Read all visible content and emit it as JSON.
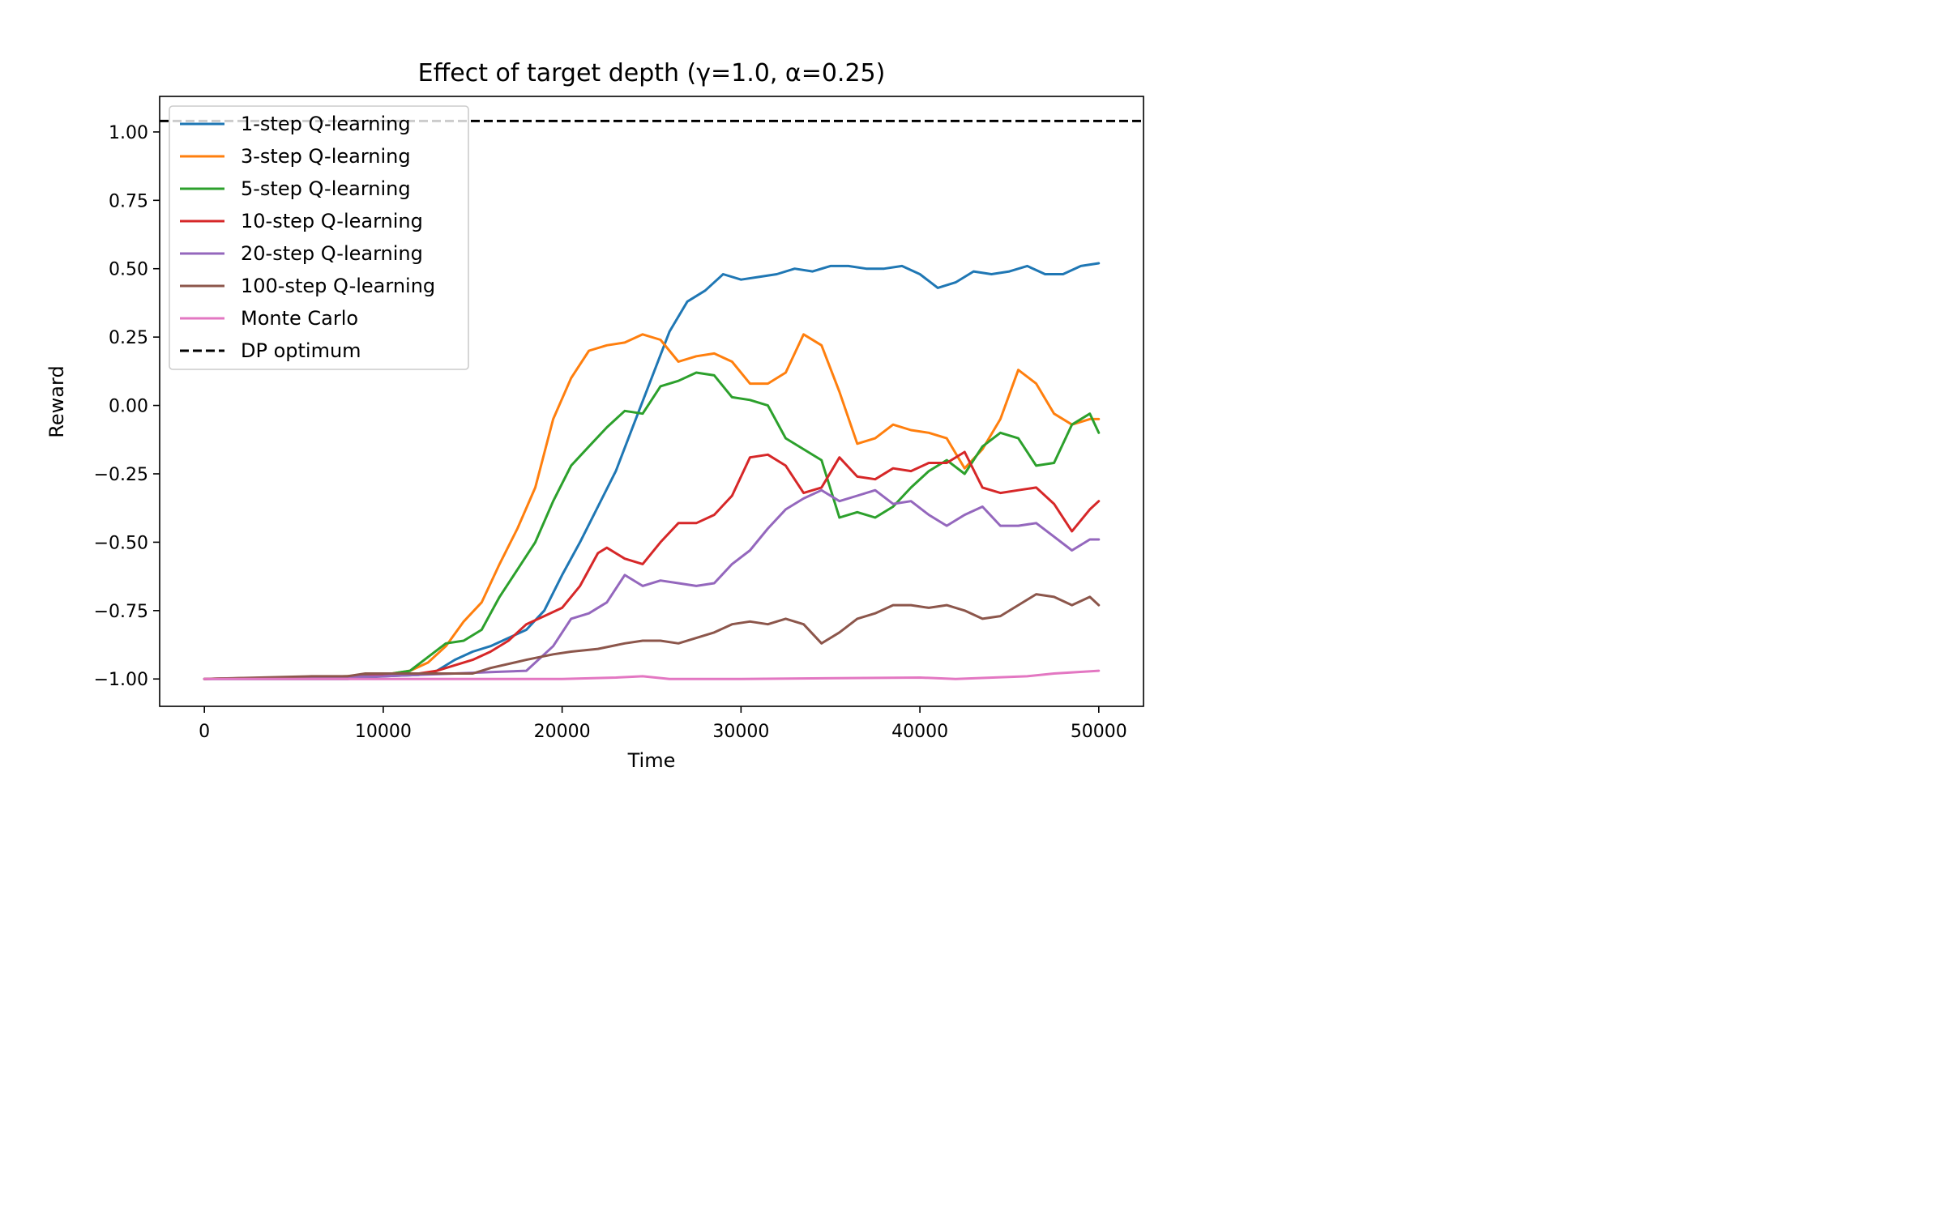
{
  "chart_data": {
    "type": "line",
    "title": "Effect of target depth (γ=1.0, α=0.25)",
    "xlabel": "Time",
    "ylabel": "Reward",
    "xlim": [
      -2500,
      52500
    ],
    "ylim": [
      -1.1,
      1.13
    ],
    "xticks": [
      0,
      10000,
      20000,
      30000,
      40000,
      50000
    ],
    "xtick_labels": [
      "0",
      "10000",
      "20000",
      "30000",
      "40000",
      "50000"
    ],
    "yticks": [
      -1.0,
      -0.75,
      -0.5,
      -0.25,
      0.0,
      0.25,
      0.5,
      0.75,
      1.0
    ],
    "ytick_labels": [
      "−1.00",
      "−0.75",
      "−0.50",
      "−0.25",
      "0.00",
      "0.25",
      "0.50",
      "0.75",
      "1.00"
    ],
    "grid": false,
    "legend_position": "top-left",
    "series": [
      {
        "name": "1-step Q-learning",
        "color": "#1f77b4",
        "points": [
          [
            0,
            -1.0
          ],
          [
            8000,
            -1.0
          ],
          [
            10000,
            -0.99
          ],
          [
            12000,
            -0.985
          ],
          [
            13000,
            -0.97
          ],
          [
            14000,
            -0.93
          ],
          [
            15000,
            -0.9
          ],
          [
            16000,
            -0.88
          ],
          [
            17000,
            -0.85
          ],
          [
            18000,
            -0.82
          ],
          [
            19000,
            -0.75
          ],
          [
            20000,
            -0.62
          ],
          [
            21000,
            -0.5
          ],
          [
            22000,
            -0.37
          ],
          [
            23000,
            -0.24
          ],
          [
            24000,
            -0.07
          ],
          [
            25000,
            0.1
          ],
          [
            26000,
            0.27
          ],
          [
            27000,
            0.38
          ],
          [
            28000,
            0.42
          ],
          [
            29000,
            0.48
          ],
          [
            30000,
            0.46
          ],
          [
            31000,
            0.47
          ],
          [
            32000,
            0.48
          ],
          [
            33000,
            0.5
          ],
          [
            34000,
            0.49
          ],
          [
            35000,
            0.51
          ],
          [
            36000,
            0.51
          ],
          [
            37000,
            0.5
          ],
          [
            38000,
            0.5
          ],
          [
            39000,
            0.51
          ],
          [
            40000,
            0.48
          ],
          [
            41000,
            0.43
          ],
          [
            42000,
            0.45
          ],
          [
            43000,
            0.49
          ],
          [
            44000,
            0.48
          ],
          [
            45000,
            0.49
          ],
          [
            46000,
            0.51
          ],
          [
            47000,
            0.48
          ],
          [
            48000,
            0.48
          ],
          [
            49000,
            0.51
          ],
          [
            50000,
            0.52
          ]
        ]
      },
      {
        "name": "3-step Q-learning",
        "color": "#ff7f0e",
        "points": [
          [
            0,
            -1.0
          ],
          [
            8000,
            -0.99
          ],
          [
            10000,
            -0.985
          ],
          [
            11500,
            -0.97
          ],
          [
            12500,
            -0.94
          ],
          [
            13500,
            -0.88
          ],
          [
            14500,
            -0.79
          ],
          [
            15500,
            -0.72
          ],
          [
            16500,
            -0.58
          ],
          [
            17500,
            -0.45
          ],
          [
            18500,
            -0.3
          ],
          [
            19500,
            -0.05
          ],
          [
            20500,
            0.1
          ],
          [
            21500,
            0.2
          ],
          [
            22500,
            0.22
          ],
          [
            23500,
            0.23
          ],
          [
            24500,
            0.26
          ],
          [
            25500,
            0.24
          ],
          [
            26500,
            0.16
          ],
          [
            27500,
            0.18
          ],
          [
            28500,
            0.19
          ],
          [
            29500,
            0.16
          ],
          [
            30500,
            0.08
          ],
          [
            31500,
            0.08
          ],
          [
            32500,
            0.12
          ],
          [
            33500,
            0.26
          ],
          [
            34500,
            0.22
          ],
          [
            35500,
            0.05
          ],
          [
            36500,
            -0.14
          ],
          [
            37500,
            -0.12
          ],
          [
            38500,
            -0.07
          ],
          [
            39500,
            -0.09
          ],
          [
            40500,
            -0.1
          ],
          [
            41500,
            -0.12
          ],
          [
            42500,
            -0.23
          ],
          [
            43500,
            -0.16
          ],
          [
            44500,
            -0.05
          ],
          [
            45500,
            0.13
          ],
          [
            46500,
            0.08
          ],
          [
            47500,
            -0.03
          ],
          [
            48500,
            -0.07
          ],
          [
            49500,
            -0.05
          ],
          [
            50000,
            -0.05
          ]
        ]
      },
      {
        "name": "5-step Q-learning",
        "color": "#2ca02c",
        "points": [
          [
            0,
            -1.0
          ],
          [
            8000,
            -0.99
          ],
          [
            10000,
            -0.985
          ],
          [
            11500,
            -0.97
          ],
          [
            12500,
            -0.92
          ],
          [
            13500,
            -0.87
          ],
          [
            14500,
            -0.86
          ],
          [
            15500,
            -0.82
          ],
          [
            16500,
            -0.7
          ],
          [
            17500,
            -0.6
          ],
          [
            18500,
            -0.5
          ],
          [
            19500,
            -0.35
          ],
          [
            20500,
            -0.22
          ],
          [
            21500,
            -0.15
          ],
          [
            22500,
            -0.08
          ],
          [
            23500,
            -0.02
          ],
          [
            24500,
            -0.03
          ],
          [
            25500,
            0.07
          ],
          [
            26500,
            0.09
          ],
          [
            27500,
            0.12
          ],
          [
            28500,
            0.11
          ],
          [
            29500,
            0.03
          ],
          [
            30500,
            0.02
          ],
          [
            31500,
            0.0
          ],
          [
            32500,
            -0.12
          ],
          [
            33500,
            -0.16
          ],
          [
            34500,
            -0.2
          ],
          [
            35500,
            -0.41
          ],
          [
            36500,
            -0.39
          ],
          [
            37500,
            -0.41
          ],
          [
            38500,
            -0.37
          ],
          [
            39500,
            -0.3
          ],
          [
            40500,
            -0.24
          ],
          [
            41500,
            -0.2
          ],
          [
            42500,
            -0.25
          ],
          [
            43500,
            -0.15
          ],
          [
            44500,
            -0.1
          ],
          [
            45500,
            -0.12
          ],
          [
            46500,
            -0.22
          ],
          [
            47500,
            -0.21
          ],
          [
            48500,
            -0.07
          ],
          [
            49500,
            -0.03
          ],
          [
            50000,
            -0.1
          ]
        ]
      },
      {
        "name": "10-step Q-learning",
        "color": "#d62728",
        "points": [
          [
            0,
            -1.0
          ],
          [
            9000,
            -0.99
          ],
          [
            12000,
            -0.98
          ],
          [
            13000,
            -0.97
          ],
          [
            14000,
            -0.95
          ],
          [
            15000,
            -0.93
          ],
          [
            16000,
            -0.9
          ],
          [
            17000,
            -0.86
          ],
          [
            18000,
            -0.8
          ],
          [
            19000,
            -0.77
          ],
          [
            20000,
            -0.74
          ],
          [
            21000,
            -0.66
          ],
          [
            22000,
            -0.54
          ],
          [
            22500,
            -0.52
          ],
          [
            23500,
            -0.56
          ],
          [
            24500,
            -0.58
          ],
          [
            25500,
            -0.5
          ],
          [
            26500,
            -0.43
          ],
          [
            27500,
            -0.43
          ],
          [
            28500,
            -0.4
          ],
          [
            29500,
            -0.33
          ],
          [
            30500,
            -0.19
          ],
          [
            31500,
            -0.18
          ],
          [
            32500,
            -0.22
          ],
          [
            33500,
            -0.32
          ],
          [
            34500,
            -0.3
          ],
          [
            35500,
            -0.19
          ],
          [
            36500,
            -0.26
          ],
          [
            37500,
            -0.27
          ],
          [
            38500,
            -0.23
          ],
          [
            39500,
            -0.24
          ],
          [
            40500,
            -0.21
          ],
          [
            41500,
            -0.21
          ],
          [
            42500,
            -0.17
          ],
          [
            43500,
            -0.3
          ],
          [
            44500,
            -0.32
          ],
          [
            45500,
            -0.31
          ],
          [
            46500,
            -0.3
          ],
          [
            47500,
            -0.36
          ],
          [
            48500,
            -0.46
          ],
          [
            49500,
            -0.38
          ],
          [
            50000,
            -0.35
          ]
        ]
      },
      {
        "name": "20-step Q-learning",
        "color": "#9467bd",
        "points": [
          [
            0,
            -1.0
          ],
          [
            10000,
            -0.99
          ],
          [
            14000,
            -0.98
          ],
          [
            16000,
            -0.975
          ],
          [
            18000,
            -0.97
          ],
          [
            19500,
            -0.88
          ],
          [
            20500,
            -0.78
          ],
          [
            21500,
            -0.76
          ],
          [
            22500,
            -0.72
          ],
          [
            23500,
            -0.62
          ],
          [
            24500,
            -0.66
          ],
          [
            25500,
            -0.64
          ],
          [
            26500,
            -0.65
          ],
          [
            27500,
            -0.66
          ],
          [
            28500,
            -0.65
          ],
          [
            29500,
            -0.58
          ],
          [
            30500,
            -0.53
          ],
          [
            31500,
            -0.45
          ],
          [
            32500,
            -0.38
          ],
          [
            33500,
            -0.34
          ],
          [
            34500,
            -0.31
          ],
          [
            35500,
            -0.35
          ],
          [
            36500,
            -0.33
          ],
          [
            37500,
            -0.31
          ],
          [
            38500,
            -0.36
          ],
          [
            39500,
            -0.35
          ],
          [
            40500,
            -0.4
          ],
          [
            41500,
            -0.44
          ],
          [
            42500,
            -0.4
          ],
          [
            43500,
            -0.37
          ],
          [
            44500,
            -0.44
          ],
          [
            45500,
            -0.44
          ],
          [
            46500,
            -0.43
          ],
          [
            47500,
            -0.48
          ],
          [
            48500,
            -0.53
          ],
          [
            49500,
            -0.49
          ],
          [
            50000,
            -0.49
          ]
        ]
      },
      {
        "name": "100-step Q-learning",
        "color": "#8c564b",
        "points": [
          [
            0,
            -1.0
          ],
          [
            6000,
            -0.99
          ],
          [
            8000,
            -0.99
          ],
          [
            9000,
            -0.98
          ],
          [
            11000,
            -0.98
          ],
          [
            13000,
            -0.98
          ],
          [
            15000,
            -0.98
          ],
          [
            16000,
            -0.96
          ],
          [
            18000,
            -0.93
          ],
          [
            19500,
            -0.91
          ],
          [
            20500,
            -0.9
          ],
          [
            22000,
            -0.89
          ],
          [
            23500,
            -0.87
          ],
          [
            24500,
            -0.86
          ],
          [
            25500,
            -0.86
          ],
          [
            26500,
            -0.87
          ],
          [
            27500,
            -0.85
          ],
          [
            28500,
            -0.83
          ],
          [
            29500,
            -0.8
          ],
          [
            30500,
            -0.79
          ],
          [
            31500,
            -0.8
          ],
          [
            32500,
            -0.78
          ],
          [
            33500,
            -0.8
          ],
          [
            34500,
            -0.87
          ],
          [
            35500,
            -0.83
          ],
          [
            36500,
            -0.78
          ],
          [
            37500,
            -0.76
          ],
          [
            38500,
            -0.73
          ],
          [
            39500,
            -0.73
          ],
          [
            40500,
            -0.74
          ],
          [
            41500,
            -0.73
          ],
          [
            42500,
            -0.75
          ],
          [
            43500,
            -0.78
          ],
          [
            44500,
            -0.77
          ],
          [
            45500,
            -0.73
          ],
          [
            46500,
            -0.69
          ],
          [
            47500,
            -0.7
          ],
          [
            48500,
            -0.73
          ],
          [
            49500,
            -0.7
          ],
          [
            50000,
            -0.73
          ]
        ]
      },
      {
        "name": "Monte Carlo",
        "color": "#e377c2",
        "points": [
          [
            0,
            -1.0
          ],
          [
            10000,
            -1.0
          ],
          [
            20000,
            -1.0
          ],
          [
            23000,
            -0.995
          ],
          [
            24500,
            -0.99
          ],
          [
            26000,
            -1.0
          ],
          [
            30000,
            -1.0
          ],
          [
            40000,
            -0.995
          ],
          [
            42000,
            -1.0
          ],
          [
            46000,
            -0.99
          ],
          [
            47500,
            -0.98
          ],
          [
            50000,
            -0.97
          ]
        ]
      },
      {
        "name": "DP optimum",
        "color": "#000000",
        "dashed": true,
        "constant_y": 1.04
      }
    ]
  }
}
